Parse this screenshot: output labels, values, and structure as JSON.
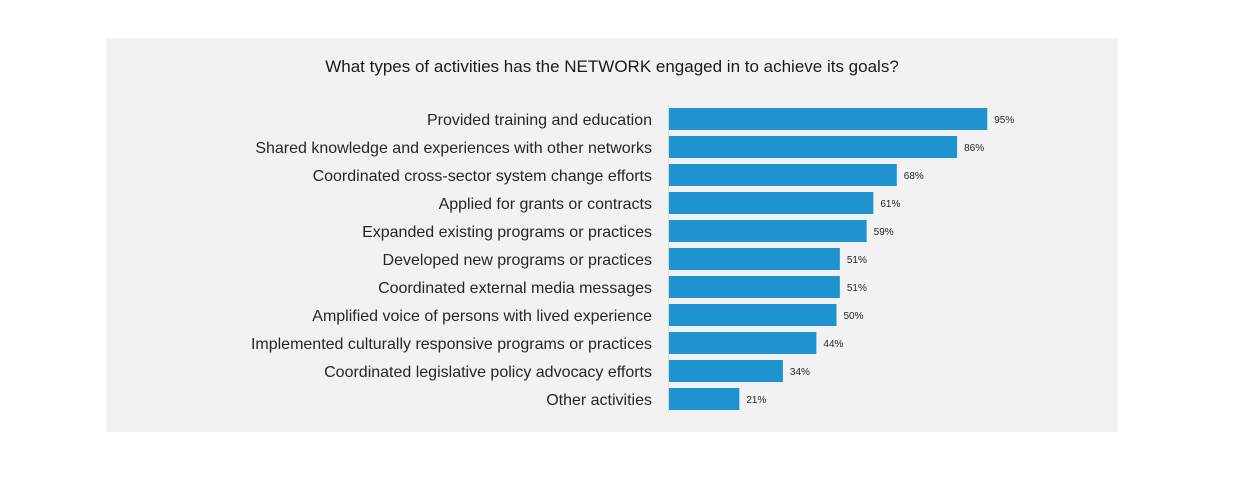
{
  "chart_data": {
    "type": "bar",
    "orientation": "horizontal",
    "title": "What types of activities has the NETWORK engaged in to achieve its goals?",
    "categories": [
      "Provided training and education",
      "Shared knowledge and experiences with other networks",
      "Coordinated cross-sector system change efforts",
      "Applied for grants or contracts",
      "Expanded existing programs or practices",
      "Developed new programs or practices",
      "Coordinated external media messages",
      "Amplified voice of persons with lived experience",
      "Implemented culturally responsive programs or practices",
      "Coordinated legislative policy advocacy efforts",
      "Other activities"
    ],
    "values": [
      95,
      86,
      68,
      61,
      59,
      51,
      51,
      50,
      44,
      34,
      21
    ],
    "data_labels": [
      "95%",
      "86%",
      "68%",
      "61%",
      "59%",
      "51%",
      "51%",
      "50%",
      "44%",
      "34%",
      "21%"
    ],
    "xlim": [
      0,
      100
    ],
    "bar_color": "#1f93cf",
    "background_color": "#f2f2f2",
    "grid": false,
    "legend": "none"
  }
}
